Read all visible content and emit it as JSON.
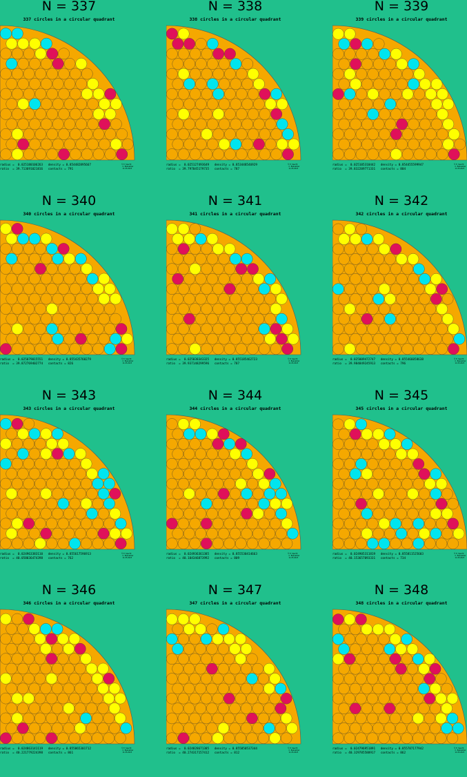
{
  "colors": {
    "background": "#20c08c",
    "orange": "#f5a800",
    "yellow": "#ffff00",
    "cyan": "#00e5ee",
    "magenta": "#e0105a"
  },
  "panels": [
    {
      "title": "N = 337",
      "subtitle": "337 circles in a circular quadrant",
      "stats_line1": "radius =  0.025180106263   density = 0.854482895667",
      "stats_line2": "ratio  = 39.713691021816   contacts = 791"
    },
    {
      "title": "N = 338",
      "subtitle": "338 circles in a circular quadrant",
      "stats_line1": "radius =  0.025127493649   density = 0.853448546929",
      "stats_line2": "ratio  = 39.797045179735   contacts = 787"
    },
    {
      "title": "N = 339",
      "subtitle": "339 circles in a circular quadrant",
      "stats_line1": "radius =  0.025105310442   density = 0.854455599947",
      "stats_line2": "ratio  = 39.832209771331   contacts = 804"
    },
    {
      "title": "N = 340",
      "subtitle": "340 circles in a circular quadrant",
      "stats_line1": "radius =  0.025079015551   density = 0.855435760279",
      "stats_line2": "ratio  = 39.872769402774   contacts = 826"
    },
    {
      "title": "N = 341",
      "subtitle": "341 circles in a circular quadrant",
      "stats_line1": "radius =  0.025038343325   density = 0.855185462723",
      "stats_line2": "ratio  = 39.937148299596   contacts = 787"
    },
    {
      "title": "N = 342",
      "subtitle": "342 circles in a circular quadrant",
      "stats_line1": "radius =  0.025009472747   density = 0.855466058638",
      "stats_line2": "ratio  = 39.984849245913   contacts = 796"
    },
    {
      "title": "N = 343",
      "subtitle": "343 circles in a circular quadrant",
      "stats_line1": "radius =  0.024963383110   density = 0.855617596913",
      "stats_line2": "ratio  = 40.058036474398   contacts = 762"
    },
    {
      "title": "N = 344",
      "subtitle": "344 circles in a circular quadrant",
      "stats_line1": "radius =  0.024936361385   density = 0.855530414663",
      "stats_line2": "ratio  = 40.104346873992   contacts = 809"
    },
    {
      "title": "N = 345",
      "subtitle": "345 circles in a circular quadrant",
      "stats_line1": "radius =  0.024905311819   density = 0.855811525603",
      "stats_line2": "ratio  = 40.153657093331   contacts = 734"
    },
    {
      "title": "N = 346",
      "subtitle": "346 circles in a circular quadrant",
      "stats_line1": "radius =  0.024863141119   density = 0.855865301712",
      "stats_line2": "ratio  = 40.221779224398   contacts = 861"
    },
    {
      "title": "N = 347",
      "subtitle": "347 circles in a circular quadrant",
      "stats_line1": "radius =  0.024828671385   density = 0.855850537344",
      "stats_line2": "ratio  = 40.274317157412   contacts = 812"
    },
    {
      "title": "N = 348",
      "subtitle": "348 circles in a circular quadrant",
      "stats_line1": "radius =  0.024796951891   density = 0.855787177942",
      "stats_line2": "ratio  = 40.329785588917   contacts = 862"
    }
  ],
  "credit": "© E. Specht\n  C. Beenakker\n  11.05.2023"
}
